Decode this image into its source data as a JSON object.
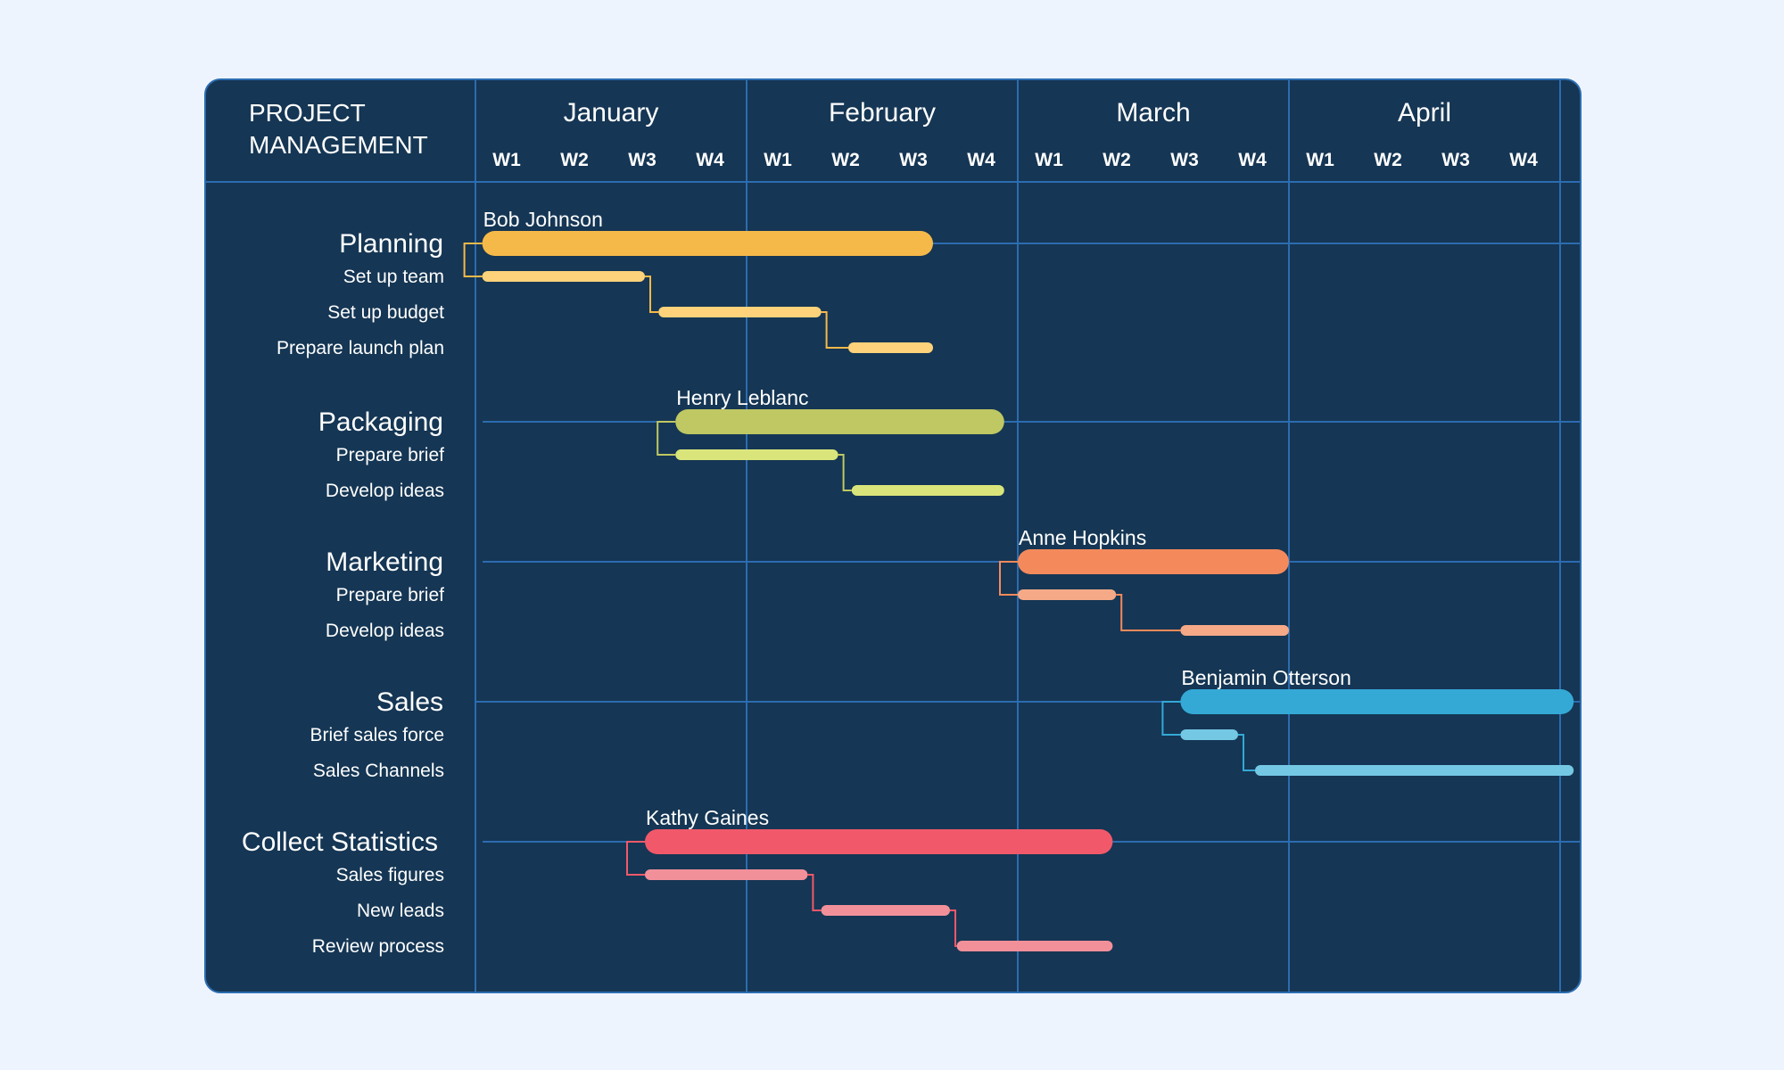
{
  "chart_data": {
    "type": "gantt",
    "title": [
      "PROJECT",
      "MANAGEMENT"
    ],
    "months": [
      "January",
      "February",
      "March",
      "April"
    ],
    "week_labels": [
      "W1",
      "W2",
      "W3",
      "W4"
    ],
    "grid": true,
    "groups": [
      {
        "name": "Planning",
        "owner": "Bob Johnson",
        "start": 0.1,
        "end": 6.75,
        "color": "#f5b94a",
        "task_color": "#fdd27a",
        "tasks": [
          {
            "name": "Set up team",
            "start": 0.1,
            "end": 2.5
          },
          {
            "name": "Set up budget",
            "start": 2.7,
            "end": 5.1
          },
          {
            "name": "Prepare launch plan",
            "start": 5.5,
            "end": 6.75
          }
        ]
      },
      {
        "name": "Packaging",
        "owner": "Henry Leblanc",
        "start": 2.95,
        "end": 7.8,
        "color": "#bfc862",
        "task_color": "#d9e57a",
        "tasks": [
          {
            "name": "Prepare brief",
            "start": 2.95,
            "end": 5.35
          },
          {
            "name": "Develop ideas",
            "start": 5.55,
            "end": 7.8
          }
        ]
      },
      {
        "name": "Marketing",
        "owner": "Anne Hopkins",
        "start": 8.0,
        "end": 12.0,
        "color": "#f48a5c",
        "task_color": "#f5a987",
        "tasks": [
          {
            "name": "Prepare brief",
            "start": 8.0,
            "end": 9.45
          },
          {
            "name": "Develop ideas",
            "start": 10.4,
            "end": 12.0
          }
        ]
      },
      {
        "name": "Sales",
        "owner": "Benjamin Otterson",
        "start": 10.4,
        "end": 16.2,
        "color": "#34a9d6",
        "task_color": "#74c8e4",
        "tasks": [
          {
            "name": "Brief sales force",
            "start": 10.4,
            "end": 11.25
          },
          {
            "name": "Sales Channels",
            "start": 11.5,
            "end": 16.2
          }
        ]
      },
      {
        "name": "Collect Statistics",
        "owner": "Kathy Gaines",
        "start": 2.5,
        "end": 9.4,
        "color": "#f1596a",
        "task_color": "#f2909a",
        "tasks": [
          {
            "name": "Sales figures",
            "start": 2.5,
            "end": 4.9
          },
          {
            "name": "New leads",
            "start": 5.1,
            "end": 7.0
          },
          {
            "name": "Review process",
            "start": 7.1,
            "end": 9.4
          }
        ]
      }
    ]
  }
}
